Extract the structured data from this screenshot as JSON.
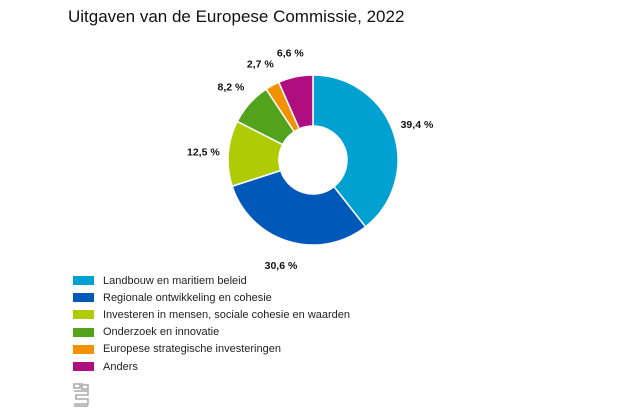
{
  "title": "Uitgaven van de Europese Commissie, 2022",
  "chart_data": {
    "type": "pie",
    "variant": "donut",
    "title": "Uitgaven van de Europese Commissie, 2022",
    "unit": "%",
    "slices": [
      {
        "name": "Landbouw en maritiem beleid",
        "value": 39.4,
        "label": "39,4 %",
        "color": "#00a0d0"
      },
      {
        "name": "Regionale ontwikkeling en cohesie",
        "value": 30.6,
        "label": "30,6 %",
        "color": "#0058b8"
      },
      {
        "name": "Investeren in mensen, sociale cohesie en waarden",
        "value": 12.5,
        "label": "12,5 %",
        "color": "#afcb05"
      },
      {
        "name": "Onderzoek en innovatie",
        "value": 8.2,
        "label": "8,2 %",
        "color": "#53a31d"
      },
      {
        "name": "Europese strategische investeringen",
        "value": 2.7,
        "label": "2,7 %",
        "color": "#f39200"
      },
      {
        "name": "Anders",
        "value": 6.6,
        "label": "6,6 %",
        "color": "#af0e80"
      }
    ],
    "legend_position": "bottom-left"
  },
  "logo": "cbs"
}
